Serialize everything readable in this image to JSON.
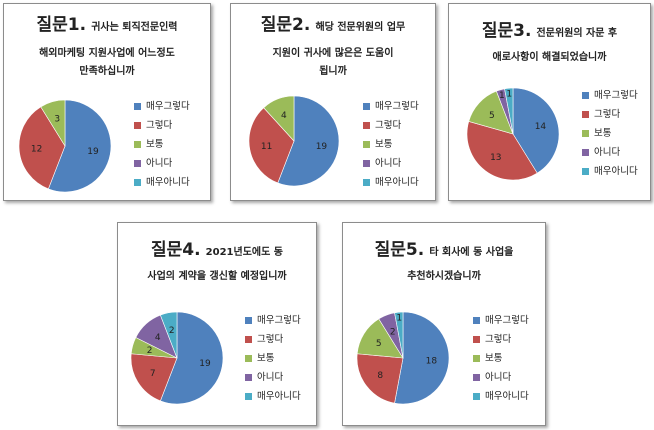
{
  "legend_labels": [
    "매우그렇다",
    "그렇다",
    "보통",
    "아니다",
    "매우아니다"
  ],
  "colors": [
    "#4f81bd",
    "#c0504d",
    "#9bbb59",
    "#8064a2",
    "#4bacc6"
  ],
  "panels": [
    {
      "title_big": "질문1.",
      "title_small": "귀사는 퇴직전문인력",
      "lines": [
        "해외마케팅 지원사업에 어느정도",
        "만족하십니까"
      ]
    },
    {
      "title_big": "질문2.",
      "title_small": "해당 전문위원의 업무",
      "lines": [
        "지원이 귀사에 많은은 도움이",
        "됩니까"
      ]
    },
    {
      "title_big": "질문3.",
      "title_small": "전문위원의 자문 후",
      "lines": [
        "애로사항이 해결되었습니까"
      ]
    },
    {
      "title_big": "질문4.",
      "title_small": "2021년도에도 동",
      "lines": [
        "사업의 계약을 갱신할 예정입니까"
      ]
    },
    {
      "title_big": "질문5.",
      "title_small": "타 회사에 동 사업을",
      "lines": [
        "추천하시겠습니까"
      ]
    }
  ],
  "chart_data": [
    {
      "type": "pie",
      "categories": [
        "매우그렇다",
        "그렇다",
        "보통",
        "아니다",
        "매우아니다"
      ],
      "values": [
        19,
        12,
        3,
        0,
        0
      ]
    },
    {
      "type": "pie",
      "categories": [
        "매우그렇다",
        "그렇다",
        "보통",
        "아니다",
        "매우아니다"
      ],
      "values": [
        19,
        11,
        4,
        0,
        0
      ]
    },
    {
      "type": "pie",
      "categories": [
        "매우그렇다",
        "그렇다",
        "보통",
        "아니다",
        "매우아니다"
      ],
      "values": [
        14,
        13,
        5,
        1,
        1
      ]
    },
    {
      "type": "pie",
      "categories": [
        "매우그렇다",
        "그렇다",
        "보통",
        "아니다",
        "매우아니다"
      ],
      "values": [
        19,
        7,
        2,
        4,
        2
      ]
    },
    {
      "type": "pie",
      "categories": [
        "매우그렇다",
        "그렇다",
        "보통",
        "아니다",
        "매우아니다"
      ],
      "values": [
        18,
        8,
        5,
        2,
        1
      ]
    }
  ]
}
